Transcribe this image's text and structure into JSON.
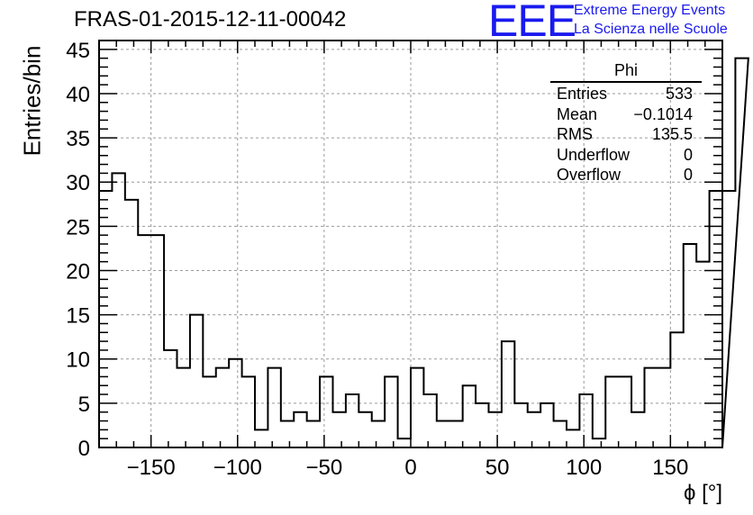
{
  "header": {
    "title": "FRAS-01-2015-12-11-00042"
  },
  "logo": {
    "mark": "EEE",
    "line1": "Extreme Energy Events",
    "line2": "La Scienza nelle Scuole",
    "color": "#1a1aee"
  },
  "stats": {
    "name": "Phi",
    "rows": [
      {
        "label": "Entries",
        "value": "533"
      },
      {
        "label": "Mean",
        "value": "−0.1014"
      },
      {
        "label": "RMS",
        "value": "135.5"
      },
      {
        "label": "Underflow",
        "value": "0"
      },
      {
        "label": "Overflow",
        "value": "0"
      }
    ]
  },
  "chart_data": {
    "type": "bar",
    "histogram": true,
    "title": "FRAS-01-2015-12-11-00042",
    "xlabel": "ϕ [°]",
    "ylabel": "Entries/bin",
    "xlim": [
      -180,
      180
    ],
    "ylim": [
      0,
      46
    ],
    "bin_width": 7.5,
    "x_ticks": [
      -150,
      -100,
      -50,
      0,
      50,
      100,
      150
    ],
    "y_ticks": [
      0,
      5,
      10,
      15,
      20,
      25,
      30,
      35,
      40,
      45
    ],
    "grid": true,
    "line_color": "#000000",
    "values": [
      29,
      31,
      28,
      24,
      24,
      11,
      9,
      15,
      8,
      9,
      10,
      8,
      2,
      9,
      3,
      4,
      3,
      8,
      4,
      6,
      4,
      3,
      8,
      1,
      9,
      6,
      3,
      3,
      7,
      5,
      4,
      12,
      5,
      4,
      5,
      3,
      2,
      6,
      1,
      8,
      8,
      4,
      9,
      9,
      13,
      23,
      21,
      29,
      29,
      44
    ]
  }
}
